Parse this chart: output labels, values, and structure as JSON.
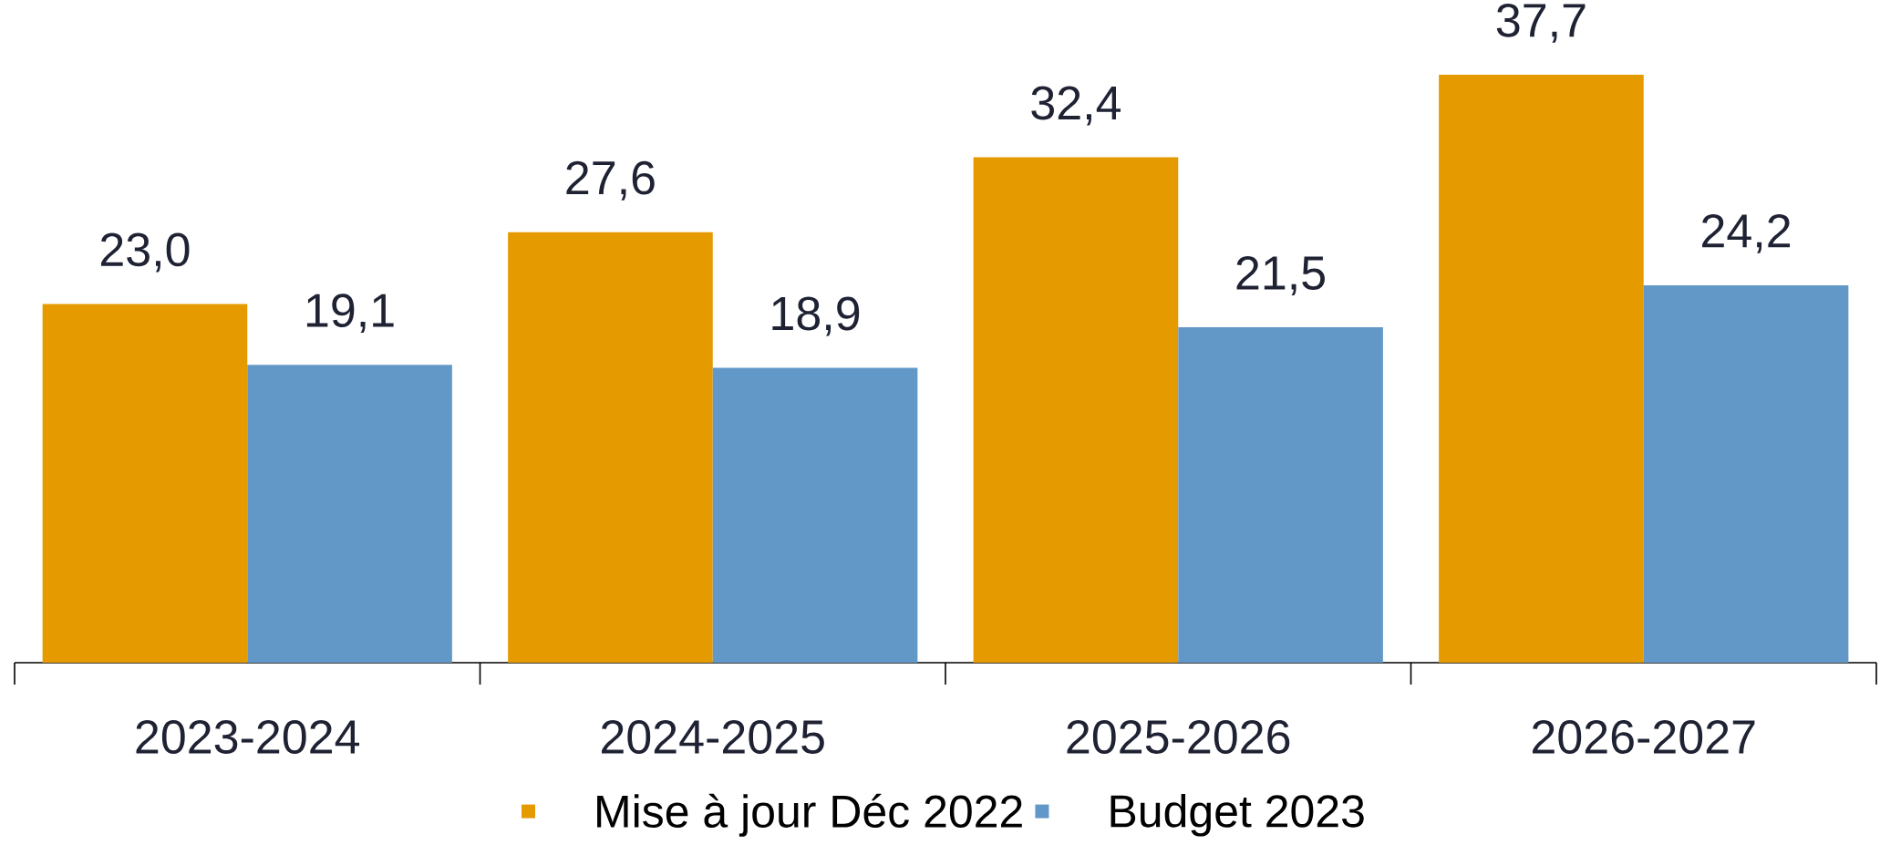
{
  "chart_data": {
    "type": "bar",
    "categories": [
      "2023-2024",
      "2024-2025",
      "2025-2026",
      "2026-2027"
    ],
    "series": [
      {
        "name": "Mise à jour Déc 2022",
        "color": "#e59a00",
        "values": [
          23.0,
          27.6,
          32.4,
          37.7
        ],
        "value_labels": [
          "23,0",
          "27,6",
          "32,4",
          "37,7"
        ]
      },
      {
        "name": "Budget 2023",
        "color": "#6298c7",
        "values": [
          19.1,
          18.9,
          21.5,
          24.2
        ],
        "value_labels": [
          "19,1",
          "18,9",
          "21,5",
          "24,2"
        ]
      }
    ],
    "legend": "bottom",
    "grid": false
  }
}
